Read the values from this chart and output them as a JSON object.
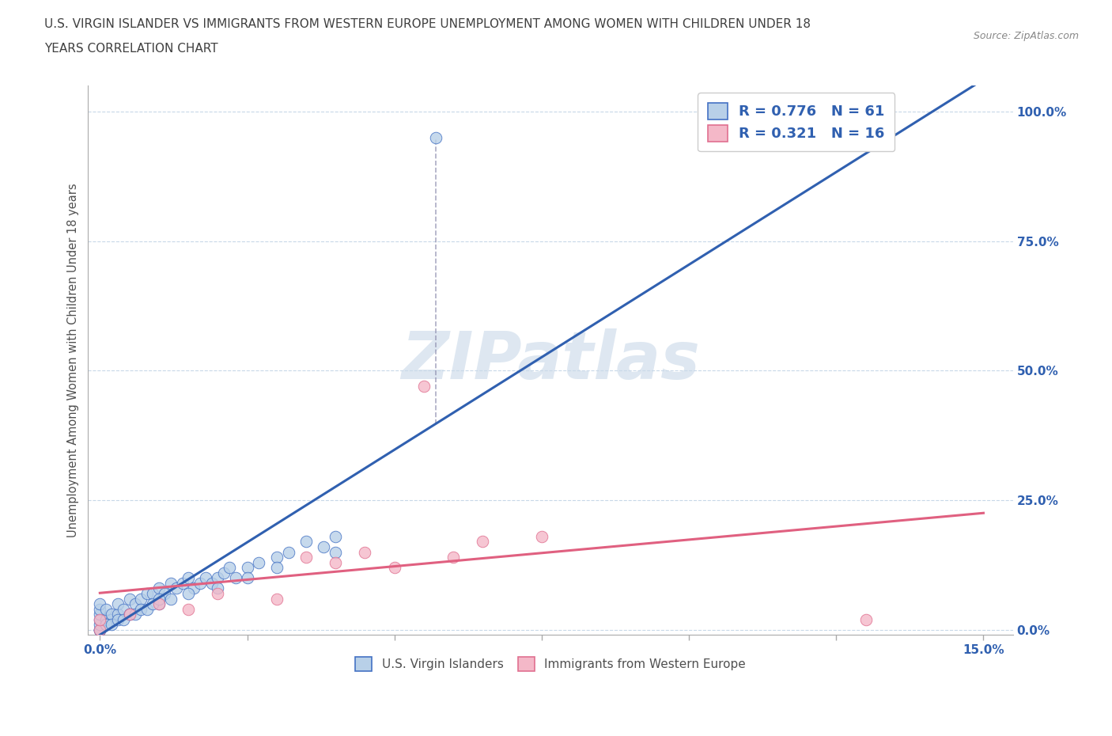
{
  "title_line1": "U.S. VIRGIN ISLANDER VS IMMIGRANTS FROM WESTERN EUROPE UNEMPLOYMENT AMONG WOMEN WITH CHILDREN UNDER 18",
  "title_line2": "YEARS CORRELATION CHART",
  "source_text": "Source: ZipAtlas.com",
  "ylabel": "Unemployment Among Women with Children Under 18 years",
  "xlim": [
    -0.002,
    0.155
  ],
  "ylim": [
    -0.01,
    1.05
  ],
  "ytick_positions": [
    0.0,
    0.25,
    0.5,
    0.75,
    1.0
  ],
  "ytick_labels": [
    "0.0%",
    "25.0%",
    "50.0%",
    "75.0%",
    "100.0%"
  ],
  "xtick_positions": [
    0.0,
    0.025,
    0.05,
    0.075,
    0.1,
    0.125,
    0.15
  ],
  "xtick_labels": [
    "0.0%",
    "",
    "",
    "",
    "",
    "",
    "15.0%"
  ],
  "R_blue": 0.776,
  "N_blue": 61,
  "R_pink": 0.321,
  "N_pink": 16,
  "blue_fill_color": "#b8d0e8",
  "blue_edge_color": "#4472c4",
  "pink_fill_color": "#f4b8c8",
  "pink_edge_color": "#e07090",
  "blue_line_color": "#3060b0",
  "pink_line_color": "#e06080",
  "dashed_line_color": "#8888aa",
  "watermark_text": "ZIPatlas",
  "watermark_color": "#c8d8e8",
  "legend_blue_label": "U.S. Virgin Islanders",
  "legend_pink_label": "Immigrants from Western Europe",
  "grid_color": "#c8d8e8",
  "background_color": "#ffffff",
  "title_color": "#404040",
  "axis_label_color": "#505050",
  "tick_label_color": "#3060b0",
  "blue_scatter_x": [
    0.0,
    0.0,
    0.0,
    0.0,
    0.0,
    0.0,
    0.0,
    0.0,
    0.001,
    0.001,
    0.001,
    0.002,
    0.002,
    0.003,
    0.003,
    0.004,
    0.005,
    0.005,
    0.006,
    0.007,
    0.008,
    0.009,
    0.01,
    0.01,
    0.011,
    0.012,
    0.013,
    0.014,
    0.015,
    0.016,
    0.017,
    0.018,
    0.019,
    0.02,
    0.021,
    0.022,
    0.023,
    0.025,
    0.027,
    0.03,
    0.032,
    0.035,
    0.038,
    0.04,
    0.001,
    0.002,
    0.003,
    0.004,
    0.005,
    0.006,
    0.007,
    0.008,
    0.009,
    0.01,
    0.012,
    0.015,
    0.02,
    0.025,
    0.03,
    0.04,
    0.057
  ],
  "blue_scatter_y": [
    0.0,
    0.0,
    0.0,
    0.01,
    0.02,
    0.03,
    0.04,
    0.05,
    0.01,
    0.02,
    0.04,
    0.02,
    0.03,
    0.03,
    0.05,
    0.04,
    0.03,
    0.06,
    0.05,
    0.06,
    0.07,
    0.07,
    0.05,
    0.08,
    0.07,
    0.09,
    0.08,
    0.09,
    0.1,
    0.08,
    0.09,
    0.1,
    0.09,
    0.1,
    0.11,
    0.12,
    0.1,
    0.12,
    0.13,
    0.14,
    0.15,
    0.17,
    0.16,
    0.18,
    0.01,
    0.01,
    0.02,
    0.02,
    0.03,
    0.03,
    0.04,
    0.04,
    0.05,
    0.06,
    0.06,
    0.07,
    0.08,
    0.1,
    0.12,
    0.15,
    0.95
  ],
  "pink_scatter_x": [
    0.0,
    0.0,
    0.005,
    0.01,
    0.015,
    0.02,
    0.03,
    0.035,
    0.04,
    0.045,
    0.05,
    0.055,
    0.06,
    0.065,
    0.075,
    0.13
  ],
  "pink_scatter_y": [
    0.0,
    0.02,
    0.03,
    0.05,
    0.04,
    0.07,
    0.06,
    0.14,
    0.13,
    0.15,
    0.12,
    0.47,
    0.14,
    0.17,
    0.18,
    0.02
  ]
}
